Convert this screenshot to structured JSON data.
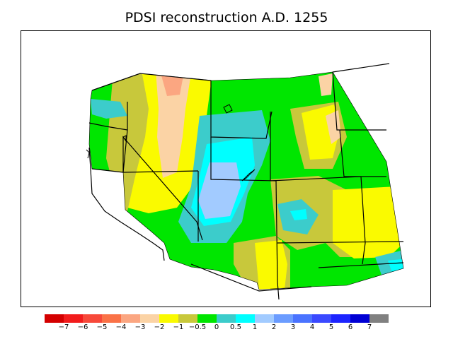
{
  "title": "PDSI reconstruction A.D. 1255",
  "legend": {
    "colors": [
      "#d40000",
      "#f21c1c",
      "#f7493a",
      "#fa7247",
      "#fba681",
      "#fbd3a5",
      "#fafa00",
      "#c8c83b",
      "#00e600",
      "#3ccccb",
      "#00ffff",
      "#a2cbff",
      "#6b9cff",
      "#4a73ff",
      "#3a49ff",
      "#1c24ff",
      "#0000d4",
      "#808080"
    ],
    "ticks": [
      "−7",
      "−6",
      "−5",
      "−4",
      "−3",
      "−2",
      "−1",
      "−0.5",
      "0",
      "0.5",
      "1",
      "2",
      "3",
      "4",
      "5",
      "6",
      "7"
    ]
  },
  "map": {
    "region": "Western United States",
    "region_colors": {
      "near_normal_wet": "#00e600",
      "slightly_dry": "#c8c83b",
      "dry": "#fafa00",
      "very_dry": "#fbd3a5",
      "extremely_dry": "#fba681",
      "slightly_wet": "#3ccccb",
      "wet": "#00ffff",
      "very_wet": "#a2cbff"
    }
  }
}
